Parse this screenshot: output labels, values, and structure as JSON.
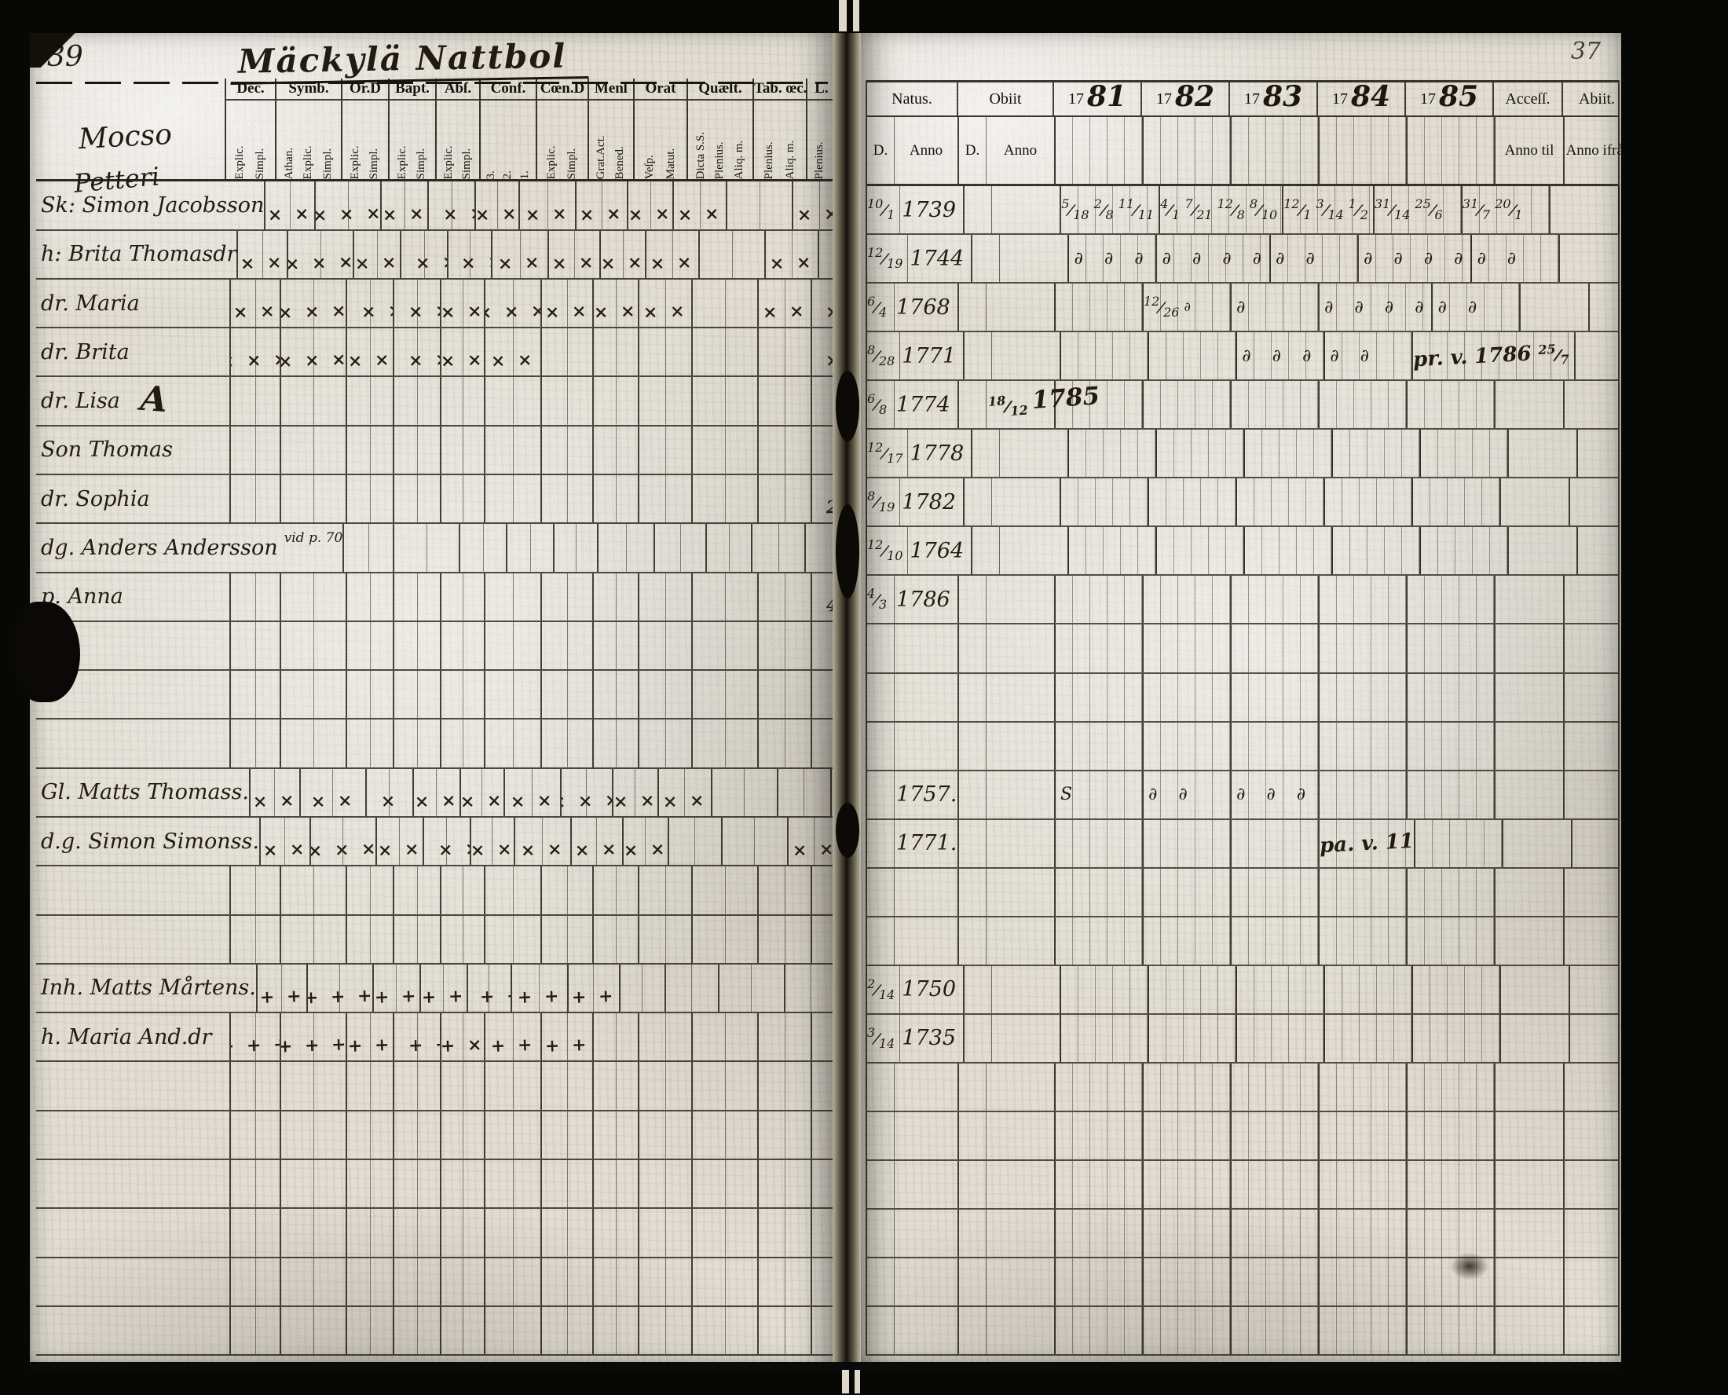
{
  "page": {
    "left_page_number": "39",
    "right_page_number": "37",
    "title": "Mäckylä Nattbol",
    "margin_notes": [
      "Mocso",
      "Petteri"
    ]
  },
  "left_table": {
    "groups": [
      {
        "label": "Dec.",
        "subs": [
          "Explic.",
          "Simpl."
        ]
      },
      {
        "label": "Symb.",
        "subs": [
          "Athan.",
          "Explic.",
          "Simpl."
        ]
      },
      {
        "label": "Or.D",
        "subs": [
          "Explic.",
          "Simpl."
        ]
      },
      {
        "label": "Bapt.",
        "subs": [
          "Explic.",
          "Simpl."
        ]
      },
      {
        "label": "Abſ.",
        "subs": [
          "Explic.",
          "Simpl."
        ]
      },
      {
        "label": "Conf.",
        "subs": [
          "3.",
          "2.",
          "1."
        ]
      },
      {
        "label": "Cœn.D",
        "subs": [
          "Explic.",
          "Simpl."
        ]
      },
      {
        "label": "Menſ",
        "subs": [
          "Grat.Act.",
          "Bened."
        ]
      },
      {
        "label": "Orat",
        "subs": [
          "Veſp.",
          "Matut."
        ]
      },
      {
        "label": "Quæſt.",
        "subs": [
          "Dicta S.S.",
          "Plenius.",
          "Aliq. m."
        ]
      },
      {
        "label": "Tab. œc.",
        "subs": [
          "Plenius.",
          "Aliq. m."
        ]
      },
      {
        "label": "L. n.",
        "subs": [
          "Plenius.",
          "Aliq. m."
        ]
      }
    ]
  },
  "right_table": {
    "natus_label": "Natus.",
    "obiit_label": "Obiit",
    "day_label": "D.",
    "anno_label": "Anno",
    "year_prefix": "17",
    "years": [
      "81",
      "82",
      "83",
      "84",
      "85"
    ],
    "access_label": "Acceſſ.",
    "abiit_label": "Abiit.",
    "anno_til_label": "Anno til",
    "anno_ifran_label": "Anno ifrån"
  },
  "rows": [
    {
      "name": "Sk: Simon Jacobsson",
      "marks": [
        "× ×",
        "× × ×",
        "× ×",
        "× × ×",
        "× ×",
        "× ×",
        "× ×",
        "× ×",
        "× ×",
        "",
        "× ×",
        "×"
      ],
      "natus_d": "10/1",
      "natus_a": "1739",
      "years": [
        "5/18 2/8 11/11",
        "4/1 7/21 12/8 8/10",
        "12/1 3/14 1/2",
        "31/14 25/6",
        "31/7 20/1"
      ]
    },
    {
      "name": "h: Brita Thomasdr",
      "marks": [
        "× ×",
        "× × ×",
        "× ×",
        "× × ×",
        "× × ×",
        "× ×",
        "× ×",
        "× ×",
        "× ×",
        "",
        "× ×",
        "×"
      ],
      "natus_d": "12/19",
      "natus_a": "1744",
      "years": [
        "∂ ∂ ∂",
        "∂ ∂ ∂ ∂",
        "∂ ∂",
        "∂ ∂ ∂ ∂",
        "∂ ∂"
      ]
    },
    {
      "name": "dr. Maria",
      "marks": [
        "× ×",
        "× × ×",
        "× × ×",
        "× × ×",
        "× ×",
        "× × ×",
        "× ×",
        "× ×",
        "× ×",
        "",
        "× ×",
        "×"
      ],
      "natus_d": "6/4",
      "natus_a": "1768",
      "years": [
        "",
        "12/26 ∂",
        "∂",
        "∂ ∂ ∂ ∂",
        "∂ ∂"
      ]
    },
    {
      "name": "dr. Brita",
      "marks": [
        "× × ×",
        "× × ×",
        "× ×",
        "× × ×",
        "× ×",
        "× ×",
        "",
        "",
        "",
        "",
        "",
        "×"
      ],
      "natus_d": "8/28",
      "natus_a": "1771",
      "years": [
        "",
        "",
        "∂ ∂ ∂",
        "∂ ∂",
        "pr. v. 1786 25/7"
      ],
      "note_year_idx": 4
    },
    {
      "name": "dr. Lisa",
      "glyph": "A",
      "natus_d": "6/8",
      "natus_a": "1774",
      "obiit": "18/12 1785"
    },
    {
      "name": "Son Thomas",
      "natus_d": "12/17",
      "natus_a": "1778"
    },
    {
      "name": "dr. Sophia",
      "marks": [
        "",
        "",
        "",
        "",
        "",
        "",
        "",
        "",
        "",
        "",
        "",
        "2"
      ],
      "natus_d": "8/19",
      "natus_a": "1782"
    },
    {
      "name": "dg. Anders Andersson",
      "note": "vid p. 70",
      "natus_d": "12/10",
      "natus_a": "1764"
    },
    {
      "name": "p. Anna",
      "marks": [
        "",
        "",
        "",
        "",
        "",
        "",
        "",
        "",
        "",
        "",
        "",
        "4"
      ],
      "natus_d": "4/3",
      "natus_a": "1786"
    },
    {},
    {},
    {},
    {
      "name": "Gl. Matts Thomass.",
      "marks": [
        "× ×",
        "× ×",
        "×",
        "× ×",
        "× ×",
        "× ×",
        "× × ×",
        "× ×",
        "× ×",
        "",
        "",
        "×"
      ],
      "natus_a": "1757.",
      "years": [
        "S",
        "∂ ∂",
        "∂ ∂ ∂",
        "",
        ""
      ]
    },
    {
      "name": "d.g. Simon Simonss.",
      "marks": [
        "× ×",
        "× × ×",
        "× ×",
        "× × ×",
        "× ×",
        "× ×",
        "× ×",
        "× ×",
        "",
        "",
        "× ×",
        "× ×"
      ],
      "natus_a": "1771.",
      "years": [
        "",
        "",
        "",
        "pa. v. 11",
        ""
      ],
      "note_year_idx": 3
    },
    {},
    {},
    {
      "name": "Inh. Matts Mårtens.",
      "marks": [
        "+ +",
        "+ + +",
        "+ +",
        "+ +",
        "+ + +",
        "+ +",
        "+ +",
        "",
        "",
        "",
        "",
        "+"
      ],
      "natus_d": "2/14",
      "natus_a": "1750"
    },
    {
      "name": "h. Maria And.dr",
      "marks": [
        "+ + +",
        "+ + +",
        "+ +",
        "+ + +",
        "+ ×",
        "+ +",
        "+ +",
        "",
        "",
        "",
        "",
        ""
      ],
      "natus_d": "3/14",
      "natus_a": "1735"
    },
    {},
    {},
    {},
    {},
    {},
    {}
  ]
}
